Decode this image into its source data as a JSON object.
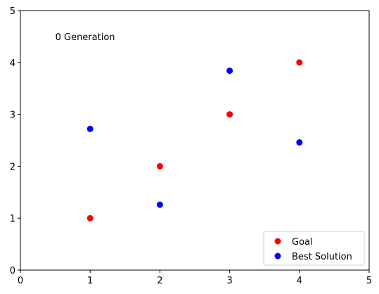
{
  "chart_data": {
    "type": "scatter",
    "title": "",
    "xlabel": "",
    "ylabel": "",
    "xlim": [
      0,
      5
    ],
    "ylim": [
      0,
      5
    ],
    "x_ticks": [
      0,
      1,
      2,
      3,
      4,
      5
    ],
    "y_ticks": [
      0,
      1,
      2,
      3,
      4,
      5
    ],
    "x_tick_labels": [
      "0",
      "1",
      "2",
      "3",
      "4",
      "5"
    ],
    "y_tick_labels": [
      "0",
      "1",
      "2",
      "3",
      "4",
      "5"
    ],
    "grid": false,
    "legend_position": "bottom-right",
    "annotation": {
      "text": "0 Generation",
      "x": 0.5,
      "y": 4.5
    },
    "series": [
      {
        "name": "Goal",
        "color": "#ff0000",
        "points": [
          {
            "x": 1,
            "y": 1
          },
          {
            "x": 2,
            "y": 2
          },
          {
            "x": 3,
            "y": 3
          },
          {
            "x": 4,
            "y": 4
          }
        ]
      },
      {
        "name": "Best Solution",
        "color": "#0000ff",
        "points": [
          {
            "x": 1,
            "y": 2.72
          },
          {
            "x": 2,
            "y": 1.26
          },
          {
            "x": 3,
            "y": 3.84
          },
          {
            "x": 4,
            "y": 2.46
          }
        ]
      }
    ]
  }
}
